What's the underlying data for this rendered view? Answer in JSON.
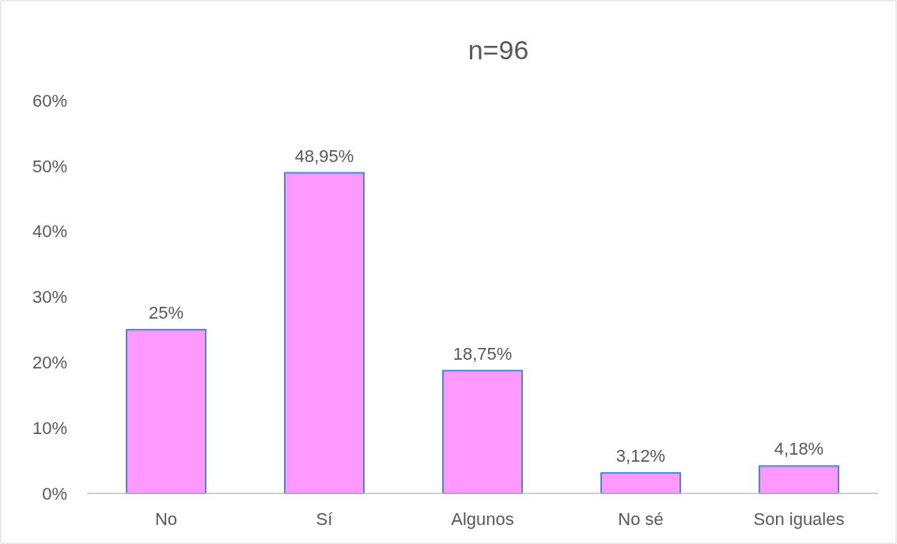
{
  "chart_data": {
    "type": "bar",
    "title": "n=96",
    "categories": [
      "No",
      "Sí",
      "Algunos",
      "No sé",
      "Son iguales"
    ],
    "values": [
      25,
      48.95,
      18.75,
      3.12,
      4.18
    ],
    "value_labels": [
      "25%",
      "48,95%",
      "18,75%",
      "3,12%",
      "4,18%"
    ],
    "color": "#ff99ff",
    "ylim": [
      0,
      60
    ],
    "yticks": [
      {
        "value": 0,
        "label": "0%"
      },
      {
        "value": 10,
        "label": "10%"
      },
      {
        "value": 20,
        "label": "20%"
      },
      {
        "value": 30,
        "label": "30%"
      },
      {
        "value": 40,
        "label": "40%"
      },
      {
        "value": 50,
        "label": "50%"
      },
      {
        "value": 60,
        "label": "60%"
      }
    ],
    "grid": false
  }
}
